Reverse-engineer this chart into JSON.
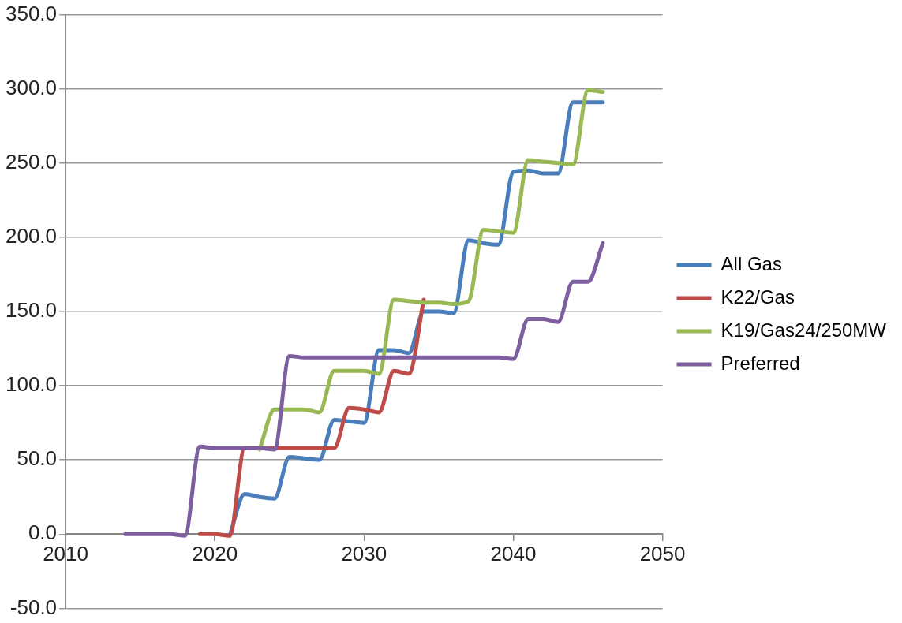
{
  "chart_data": {
    "type": "line",
    "x": [
      2014,
      2015,
      2016,
      2017,
      2018,
      2019,
      2020,
      2021,
      2022,
      2023,
      2024,
      2025,
      2026,
      2027,
      2028,
      2029,
      2030,
      2031,
      2032,
      2033,
      2034,
      2035,
      2036,
      2037,
      2038,
      2039,
      2040,
      2041,
      2042,
      2043,
      2044,
      2045,
      2046
    ],
    "series": [
      {
        "name": "All Gas",
        "color": "#4a7ebb",
        "values": [
          null,
          null,
          null,
          null,
          null,
          null,
          null,
          -1,
          27,
          25,
          24,
          52,
          51,
          50,
          77,
          76,
          75,
          124,
          124,
          122,
          150,
          150,
          149,
          198,
          196,
          195,
          244,
          245,
          243,
          243,
          291,
          291,
          291
        ]
      },
      {
        "name": "K22/Gas",
        "color": "#be4b48",
        "values": [
          null,
          null,
          null,
          null,
          null,
          0,
          0,
          -1,
          58,
          58,
          58,
          58,
          58,
          58,
          58,
          85,
          84,
          82,
          110,
          108,
          158,
          null,
          null,
          null,
          null,
          null,
          null,
          null,
          null,
          null,
          null,
          null,
          null
        ]
      },
      {
        "name": "K19/Gas24/250MW",
        "color": "#98b954",
        "values": [
          null,
          null,
          null,
          null,
          null,
          null,
          null,
          null,
          null,
          57,
          84,
          84,
          84,
          82,
          110,
          110,
          110,
          108,
          158,
          157,
          156,
          156,
          155,
          157,
          205,
          204,
          203,
          252,
          251,
          250,
          249,
          299,
          298
        ]
      },
      {
        "name": "Preferred",
        "color": "#7d5fa0",
        "values": [
          0,
          0,
          0,
          0,
          -1,
          59,
          58,
          58,
          58,
          58,
          57,
          120,
          119,
          119,
          119,
          119,
          119,
          119,
          119,
          119,
          119,
          119,
          119,
          119,
          119,
          119,
          118,
          145,
          145,
          143,
          170,
          170,
          196
        ]
      }
    ],
    "xlim": [
      2010,
      2050
    ],
    "xticks": [
      2010,
      2020,
      2030,
      2040,
      2050
    ],
    "ylim": [
      -50,
      350
    ],
    "yticks": [
      {
        "value": -50,
        "label": "-50.0"
      },
      {
        "value": 0,
        "label": "0.0"
      },
      {
        "value": 50,
        "label": "50.0"
      },
      {
        "value": 100,
        "label": "100.0"
      },
      {
        "value": 150,
        "label": "150.0"
      },
      {
        "value": 200,
        "label": "200.0"
      },
      {
        "value": 250,
        "label": "250.0"
      },
      {
        "value": 300,
        "label": "300.0"
      },
      {
        "value": 350,
        "label": "350.0"
      }
    ],
    "grid": "y",
    "legend": "right",
    "marker": "none",
    "line_style": "solid"
  }
}
